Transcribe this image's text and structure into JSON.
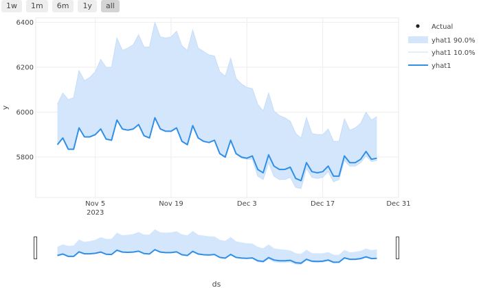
{
  "range_selector": {
    "buttons": [
      {
        "label": "1w"
      },
      {
        "label": "1m"
      },
      {
        "label": "6m"
      },
      {
        "label": "1y"
      },
      {
        "label": "all",
        "active": true
      }
    ]
  },
  "colors": {
    "line": "#2e8ee8",
    "band": "#d4e6fc",
    "band_edge": "#c7dcf7",
    "grid": "#eeeeee",
    "text": "#444444"
  },
  "chart_data": {
    "type": "line",
    "xlabel": "ds",
    "ylabel": "y",
    "x_start": "2023-10-29",
    "x_end": "2023-12-29",
    "xlim": [
      "2023-10-25",
      "2023-12-31"
    ],
    "ylim": [
      5620,
      6420
    ],
    "yticks": [
      5800,
      6000,
      6200,
      6400
    ],
    "xticks": [
      {
        "date": "2023-11-05",
        "label": "Nov 5",
        "sublabel": "2023"
      },
      {
        "date": "2023-11-19",
        "label": "Nov 19",
        "sublabel": ""
      },
      {
        "date": "2023-12-03",
        "label": "Dec 3",
        "sublabel": ""
      },
      {
        "date": "2023-12-17",
        "label": "Dec 17",
        "sublabel": ""
      },
      {
        "date": "2023-12-31",
        "label": "Dec 31",
        "sublabel": ""
      }
    ],
    "legend": [
      "Actual",
      "yhat1 90.0%",
      "yhat1 10.0%",
      "yhat1"
    ],
    "legend_position": "top-right",
    "series": [
      {
        "name": "yhat1",
        "values": [
          5855,
          5885,
          5835,
          5835,
          5930,
          5890,
          5890,
          5900,
          5925,
          5880,
          5875,
          5965,
          5925,
          5920,
          5925,
          5945,
          5895,
          5885,
          5975,
          5925,
          5915,
          5915,
          5930,
          5870,
          5855,
          5940,
          5885,
          5870,
          5865,
          5875,
          5815,
          5800,
          5875,
          5815,
          5800,
          5795,
          5805,
          5745,
          5730,
          5810,
          5760,
          5745,
          5745,
          5755,
          5705,
          5695,
          5775,
          5735,
          5730,
          5735,
          5760,
          5715,
          5715,
          5805,
          5775,
          5775,
          5790,
          5825,
          5790,
          5795
        ]
      },
      {
        "name": "yhat1 90.0%",
        "values": [
          6035,
          6085,
          6055,
          6065,
          6185,
          6140,
          6155,
          6180,
          6235,
          6200,
          6200,
          6330,
          6275,
          6285,
          6300,
          6345,
          6290,
          6290,
          6400,
          6335,
          6330,
          6335,
          6360,
          6295,
          6275,
          6365,
          6285,
          6270,
          6255,
          6250,
          6180,
          6160,
          6240,
          6150,
          6125,
          6110,
          6105,
          6035,
          6005,
          6085,
          6005,
          5985,
          5975,
          5960,
          5905,
          5885,
          5975,
          5905,
          5900,
          5900,
          5925,
          5870,
          5870,
          5970,
          5920,
          5930,
          5950,
          6000,
          5965,
          5980
        ]
      },
      {
        "name": "yhat1 10.0%",
        "values": [
          5855,
          5885,
          5835,
          5835,
          5930,
          5890,
          5890,
          5900,
          5925,
          5880,
          5875,
          5965,
          5925,
          5920,
          5925,
          5945,
          5895,
          5885,
          5975,
          5925,
          5915,
          5915,
          5930,
          5870,
          5855,
          5940,
          5885,
          5870,
          5865,
          5875,
          5815,
          5800,
          5875,
          5815,
          5795,
          5790,
          5790,
          5715,
          5700,
          5775,
          5715,
          5700,
          5700,
          5710,
          5665,
          5660,
          5750,
          5710,
          5705,
          5710,
          5735,
          5690,
          5700,
          5785,
          5760,
          5760,
          5775,
          5805,
          5780,
          5785
        ]
      }
    ]
  }
}
